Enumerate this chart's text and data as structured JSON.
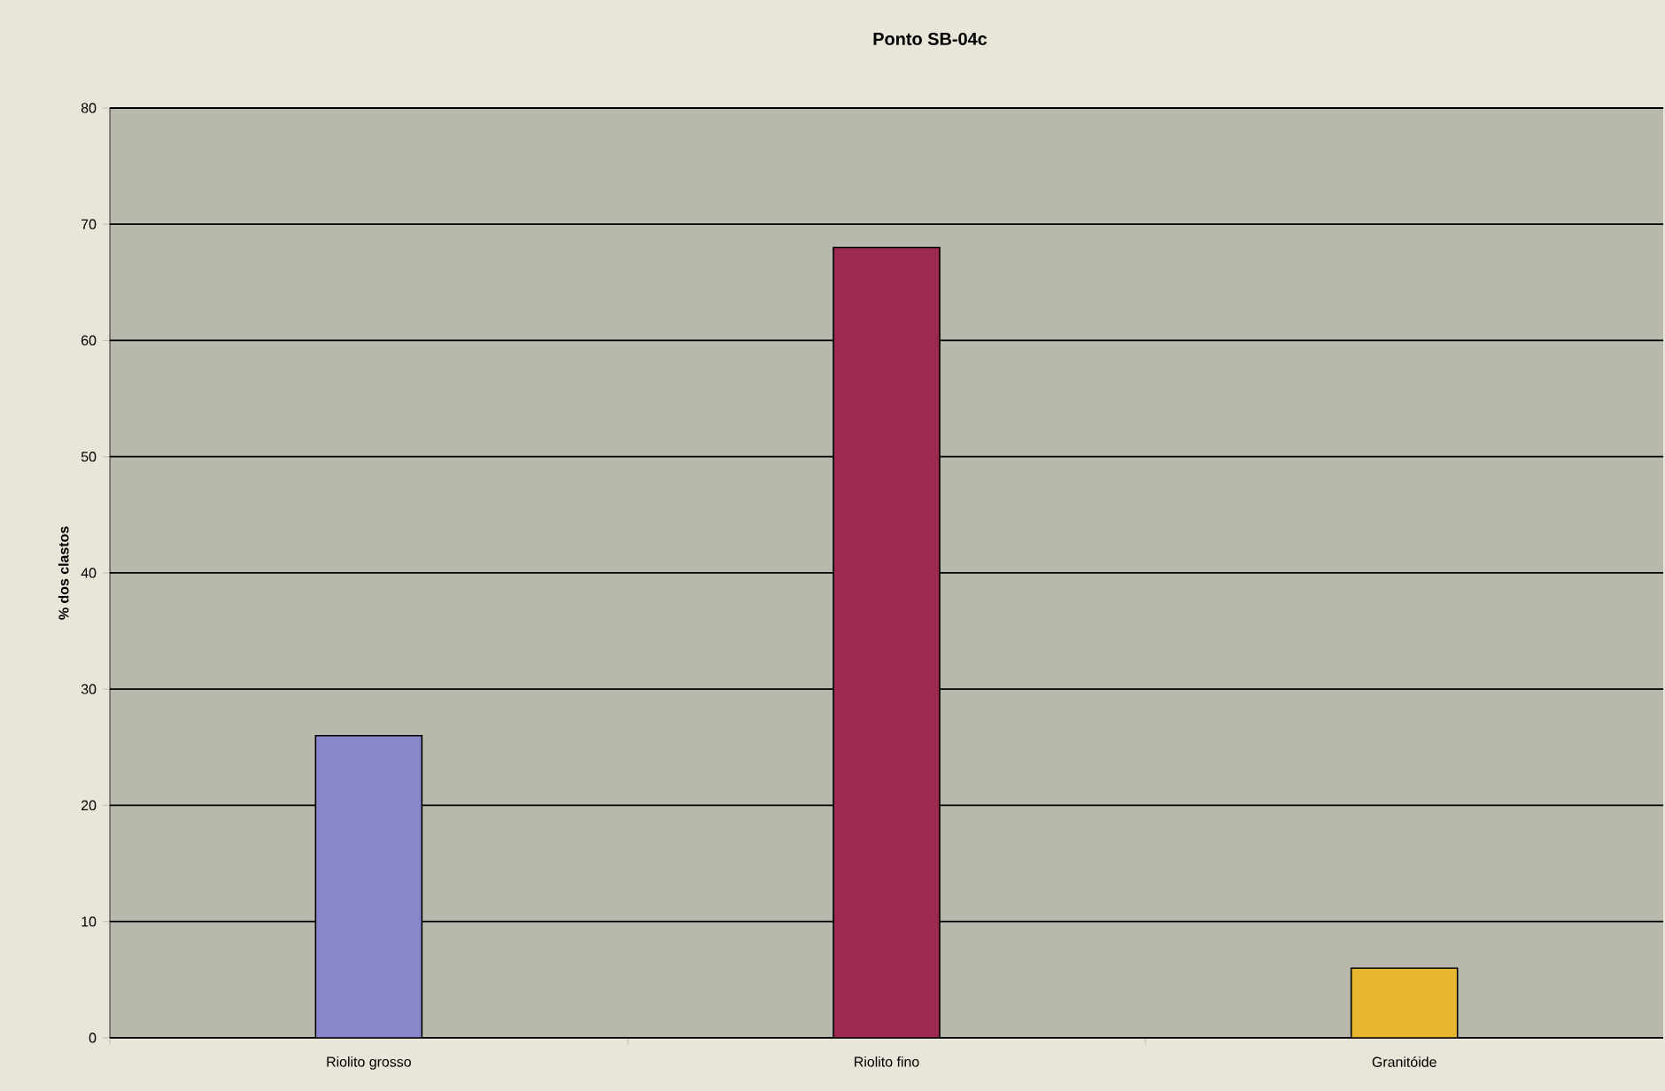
{
  "chart_data": {
    "type": "bar",
    "title": "Ponto SB-04c",
    "ylabel": "% dos clastos",
    "categories": [
      "Riolito grosso",
      "Riolito fino",
      "Granitóide"
    ],
    "values": [
      26,
      68,
      6
    ],
    "colors": [
      "#8a86cc",
      "#9c2a4e",
      "#e8b62e"
    ],
    "ylim": [
      0,
      80
    ],
    "yticks": [
      0,
      10,
      20,
      30,
      40,
      50,
      60,
      70,
      80
    ],
    "grid": "y"
  }
}
